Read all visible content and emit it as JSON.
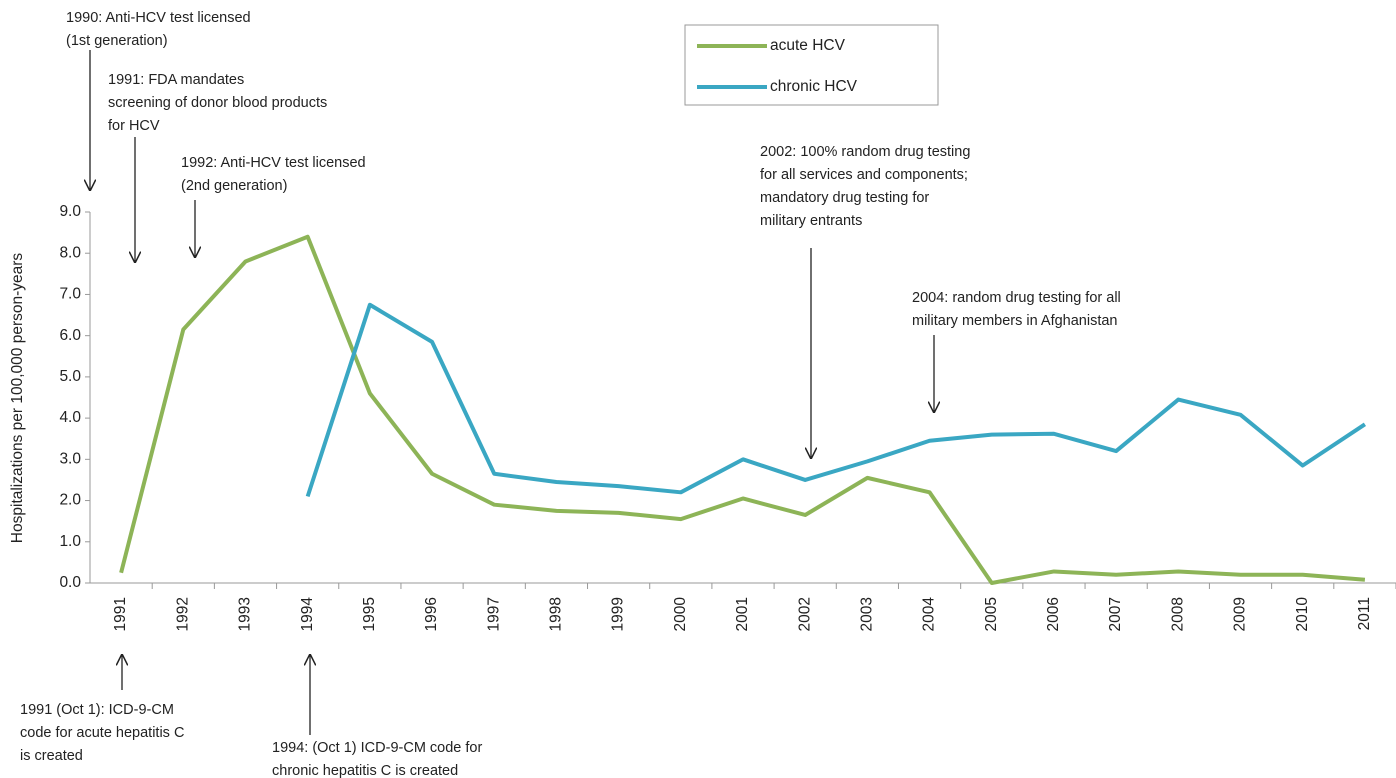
{
  "chart_data": {
    "type": "line",
    "y_label": "Hospitalizations per 100,000 person-years",
    "categories": [
      "1991",
      "1992",
      "1993",
      "1994",
      "1995",
      "1996",
      "1997",
      "1998",
      "1999",
      "2000",
      "2001",
      "2002",
      "2003",
      "2004",
      "2005",
      "2006",
      "2007",
      "2008",
      "2009",
      "2010",
      "2011"
    ],
    "series": [
      {
        "name": "acute HCV",
        "color": "#8db457",
        "values": [
          0.25,
          6.15,
          7.8,
          8.4,
          4.6,
          2.65,
          1.9,
          1.75,
          1.7,
          1.55,
          2.05,
          1.65,
          2.55,
          2.2,
          0.0,
          0.28,
          0.2,
          0.28,
          0.2,
          0.2,
          0.08
        ]
      },
      {
        "name": "chronic HCV",
        "color": "#3aa7c3",
        "values": [
          null,
          null,
          null,
          2.1,
          6.75,
          5.85,
          2.65,
          2.45,
          2.35,
          2.2,
          3.0,
          2.5,
          2.95,
          3.45,
          3.6,
          3.62,
          3.2,
          4.45,
          4.08,
          2.85,
          3.85
        ]
      }
    ],
    "ylim": [
      0,
      9
    ],
    "yticks": [
      {
        "value": 0,
        "label": "0.0"
      },
      {
        "value": 1,
        "label": "1.0"
      },
      {
        "value": 2,
        "label": "2.0"
      },
      {
        "value": 3,
        "label": "3.0"
      },
      {
        "value": 4,
        "label": "4.0"
      },
      {
        "value": 5,
        "label": "5.0"
      },
      {
        "value": 6,
        "label": "6.0"
      },
      {
        "value": 7,
        "label": "7.0"
      },
      {
        "value": 8,
        "label": "8.0"
      },
      {
        "value": 9,
        "label": "9.0"
      }
    ],
    "grid": false,
    "annotations": [
      [
        "1990: Anti-HCV test licensed",
        "(1st generation)"
      ],
      [
        "1991: FDA mandates",
        "screening of donor blood products",
        "for HCV"
      ],
      [
        "1992: Anti-HCV test licensed",
        "(2nd generation)"
      ],
      [
        "2002: 100% random drug testing",
        "for all services and components;",
        "mandatory drug testing for",
        "military entrants"
      ],
      [
        "2004: random drug testing for all",
        "military members in Afghanistan"
      ],
      [
        "1991 (Oct 1): ICD-9-CM",
        "code for acute hepatitis C",
        "is created"
      ],
      [
        "1994: (Oct 1) ICD-9-CM code for",
        "chronic hepatitis C is created"
      ]
    ]
  }
}
